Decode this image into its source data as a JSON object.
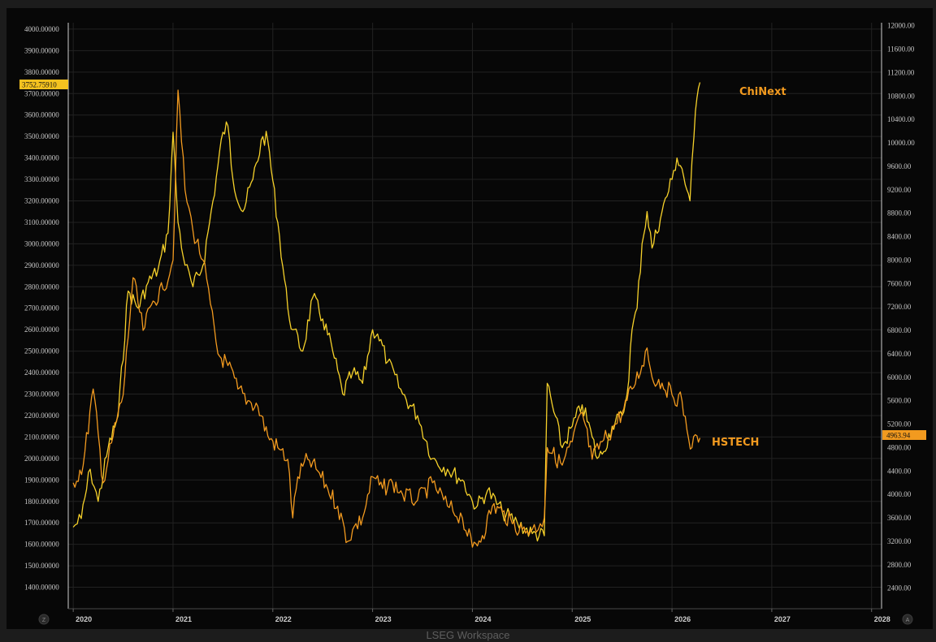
{
  "footer": {
    "text": "LSEG Workspace"
  },
  "corner": {
    "left": "Z",
    "right": "A"
  },
  "colors": {
    "background": "#070707",
    "grid": "#222222",
    "chinext": "#f6d12a",
    "hstech": "#f29a1f"
  },
  "chart_data": {
    "type": "line",
    "title": "",
    "xlabel": "",
    "ylabel": "",
    "x_ticks": [
      "2020",
      "2021",
      "2022",
      "2023",
      "2024",
      "2025",
      "2026",
      "2027",
      "2028"
    ],
    "xlim": [
      2019.95,
      2028.1
    ],
    "y_left": {
      "ylim": [
        1300,
        4030
      ],
      "ticks": [
        "1400.00000",
        "1500.00000",
        "1600.00000",
        "1700.00000",
        "1800.00000",
        "1900.00000",
        "2000.00000",
        "2100.00000",
        "2200.00000",
        "2300.00000",
        "2400.00000",
        "2500.00000",
        "2600.00000",
        "2700.00000",
        "2800.00000",
        "2900.00000",
        "3000.00000",
        "3100.00000",
        "3200.00000",
        "3300.00000",
        "3400.00000",
        "3500.00000",
        "3600.00000",
        "3700.00000",
        "3800.00000",
        "3900.00000",
        "4000.00000"
      ],
      "current_value": "3752.75910"
    },
    "y_right": {
      "ylim": [
        2050,
        12050
      ],
      "ticks": [
        "2400.00",
        "2800.00",
        "3200.00",
        "3600.00",
        "4000.00",
        "4400.00",
        "4800.00",
        "5200.00",
        "5600.00",
        "6000.00",
        "6400.00",
        "6800.00",
        "7200.00",
        "7600.00",
        "8000.00",
        "8400.00",
        "8800.00",
        "9200.00",
        "9600.00",
        "10000.00",
        "10400.00",
        "10800.00",
        "11200.00",
        "11600.00",
        "12000.00"
      ],
      "current_value": "4963.94"
    },
    "series": [
      {
        "name": "ChiNext",
        "axis": "left",
        "color": "#f6d12a",
        "x": [
          2020.0,
          2020.08,
          2020.17,
          2020.25,
          2020.35,
          2020.45,
          2020.55,
          2020.65,
          2020.75,
          2020.85,
          2020.95,
          2021.0,
          2021.05,
          2021.12,
          2021.2,
          2021.3,
          2021.4,
          2021.5,
          2021.55,
          2021.6,
          2021.7,
          2021.8,
          2021.9,
          2021.95,
          2022.05,
          2022.15,
          2022.2,
          2022.3,
          2022.4,
          2022.5,
          2022.6,
          2022.7,
          2022.8,
          2022.9,
          2023.0,
          2023.05,
          2023.15,
          2023.3,
          2023.45,
          2023.6,
          2023.75,
          2023.9,
          2024.0,
          2024.05,
          2024.15,
          2024.3,
          2024.45,
          2024.6,
          2024.72,
          2024.75,
          2024.8,
          2024.9,
          2025.0,
          2025.1,
          2025.2,
          2025.25,
          2025.3,
          2025.4,
          2025.5,
          2025.55,
          2025.6,
          2025.65,
          2025.7,
          2025.75,
          2025.8,
          2025.9,
          2026.0,
          2026.05,
          2026.1,
          2026.15,
          2026.18,
          2026.22,
          2026.25,
          2026.28
        ],
        "values": [
          1680,
          1720,
          1950,
          1800,
          2050,
          2200,
          2780,
          2700,
          2820,
          2880,
          3050,
          3520,
          3100,
          2900,
          2800,
          2900,
          3200,
          3520,
          3550,
          3300,
          3150,
          3300,
          3500,
          3480,
          3100,
          2700,
          2600,
          2500,
          2750,
          2650,
          2500,
          2300,
          2400,
          2350,
          2600,
          2580,
          2450,
          2300,
          2200,
          2000,
          1950,
          1900,
          1800,
          1780,
          1850,
          1750,
          1700,
          1650,
          1640,
          2350,
          2250,
          2050,
          2150,
          2250,
          2100,
          2000,
          2020,
          2150,
          2200,
          2300,
          2600,
          2700,
          3000,
          3150,
          2980,
          3150,
          3300,
          3400,
          3350,
          3250,
          3200,
          3500,
          3680,
          3752
        ]
      },
      {
        "name": "HSTECH",
        "axis": "right",
        "color": "#f29a1f",
        "x": [
          2020.0,
          2020.1,
          2020.2,
          2020.3,
          2020.4,
          2020.5,
          2020.6,
          2020.7,
          2020.8,
          2020.9,
          2021.0,
          2021.05,
          2021.12,
          2021.2,
          2021.3,
          2021.45,
          2021.55,
          2021.65,
          2021.75,
          2021.85,
          2021.95,
          2022.05,
          2022.15,
          2022.2,
          2022.25,
          2022.35,
          2022.45,
          2022.55,
          2022.65,
          2022.75,
          2022.8,
          2022.9,
          2023.0,
          2023.1,
          2023.2,
          2023.3,
          2023.45,
          2023.6,
          2023.75,
          2023.9,
          2024.0,
          2024.1,
          2024.2,
          2024.3,
          2024.4,
          2024.5,
          2024.6,
          2024.68,
          2024.72,
          2024.75,
          2024.8,
          2024.9,
          2025.0,
          2025.1,
          2025.2,
          2025.3,
          2025.4,
          2025.5,
          2025.6,
          2025.7,
          2025.75,
          2025.8,
          2025.9,
          2026.0,
          2026.1,
          2026.15,
          2026.2,
          2026.25,
          2026.28
        ],
        "values": [
          4200,
          4500,
          5800,
          4200,
          5000,
          5700,
          7700,
          6800,
          7300,
          7500,
          8000,
          10900,
          9200,
          8500,
          8000,
          6400,
          6200,
          5800,
          5600,
          5500,
          5000,
          4800,
          4600,
          3600,
          4300,
          4600,
          4400,
          4100,
          3800,
          3200,
          3400,
          3600,
          4300,
          4100,
          4200,
          4000,
          3900,
          4200,
          3800,
          3600,
          3100,
          3300,
          3800,
          3700,
          3500,
          3400,
          3400,
          3500,
          3600,
          4800,
          4700,
          4500,
          4900,
          5400,
          4600,
          4900,
          5100,
          5400,
          5800,
          6200,
          6500,
          6000,
          5900,
          5700,
          5600,
          5100,
          4800,
          5000,
          4963.94
        ]
      }
    ],
    "annotations": [
      {
        "text": "ChiNext",
        "color": "#f29a1f"
      },
      {
        "text": "HSTECH",
        "color": "#f29a1f"
      }
    ],
    "grid": true,
    "legend": "none"
  }
}
